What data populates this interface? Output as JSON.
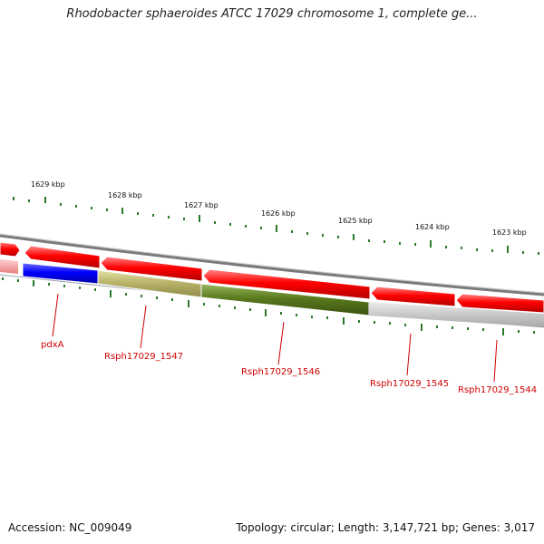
{
  "title": "Rhodobacter sphaeroides ATCC 17029 chromosome 1, complete ge...",
  "footer": {
    "accession": "Accession: NC_009049",
    "summary": "Topology: circular; Length: 3,147,721 bp; Genes: 3,017"
  },
  "colors": {
    "gene_red": "#ff0000",
    "gene_blue": "#0000ff",
    "gene_khaki": "#b8b46a",
    "gene_olive": "#5a7a1e",
    "gene_grey": "#c8c8c8",
    "tick_green": "#2a7a2a",
    "backbone_grey": "#808080",
    "label_red": "#d00000"
  },
  "scale_labels": [
    "1629 kbp",
    "1628 kbp",
    "1627 kbp",
    "1626 kbp",
    "1625 kbp",
    "1624 kbp",
    "1623 kbp"
  ],
  "forward_genes": [
    {
      "color": "#ff0000",
      "direction": "right"
    },
    {
      "color": "#ff0000",
      "direction": "left"
    },
    {
      "color": "#ff0000",
      "direction": "left"
    },
    {
      "color": "#ff0000",
      "direction": "left"
    },
    {
      "color": "#ff0000",
      "direction": "left"
    },
    {
      "color": "#ff0000",
      "direction": "left"
    }
  ],
  "reverse_genes": [
    {
      "name": "pdxA",
      "color": "#0000ff"
    },
    {
      "name": "Rsph17029_1547",
      "color": "#b8b46a"
    },
    {
      "name": "Rsph17029_1546",
      "color": "#5a7a1e"
    },
    {
      "name": "Rsph17029_1545",
      "color": "#c8c8c8"
    },
    {
      "name": "Rsph17029_1544",
      "color": "#c8c8c8"
    }
  ]
}
